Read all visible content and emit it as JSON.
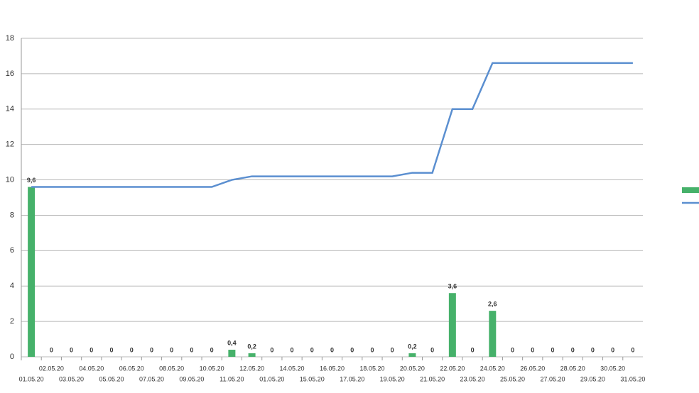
{
  "chart_data": {
    "type": "bar-line",
    "categories": [
      "01.05.20",
      "02.05.20",
      "03.05.20",
      "04.05.20",
      "05.05.20",
      "06.05.20",
      "07.05.20",
      "08.05.20",
      "09.05.20",
      "10.05.20",
      "11.05.20",
      "12.05.20",
      "01.05.20",
      "14.05.20",
      "15.05.20",
      "16.05.20",
      "17.05.20",
      "18.05.20",
      "19.05.20",
      "20.05.20",
      "21.05.20",
      "22.05.20",
      "23.05.20",
      "24.05.20",
      "25.05.20",
      "26.05.20",
      "27.05.20",
      "28.05.20",
      "29.05.20",
      "30.05.20",
      "31.05.20"
    ],
    "series": [
      {
        "type": "bar",
        "color": "#46b16a",
        "values": [
          9.6,
          0,
          0,
          0,
          0,
          0,
          0,
          0,
          0,
          0,
          0.4,
          0.2,
          0,
          0,
          0,
          0,
          0,
          0,
          0,
          0.2,
          0,
          3.6,
          0,
          2.6,
          0,
          0,
          0,
          0,
          0,
          0,
          0
        ],
        "value_labels": [
          "9,6",
          "0",
          "0",
          "0",
          "0",
          "0",
          "0",
          "0",
          "0",
          "0",
          "0,4",
          "0,2",
          "0",
          "0",
          "0",
          "0",
          "0",
          "0",
          "0",
          "0,2",
          "0",
          "3,6",
          "0",
          "2,6",
          "0",
          "0",
          "0",
          "0",
          "0",
          "0",
          "0"
        ]
      },
      {
        "type": "line",
        "color": "#5b8fd0",
        "values": [
          9.6,
          9.6,
          9.6,
          9.6,
          9.6,
          9.6,
          9.6,
          9.6,
          9.6,
          9.6,
          10.0,
          10.2,
          10.2,
          10.2,
          10.2,
          10.2,
          10.2,
          10.2,
          10.2,
          10.4,
          10.4,
          14.0,
          14.0,
          16.6,
          16.6,
          16.6,
          16.6,
          16.6,
          16.6,
          16.6,
          16.6
        ]
      }
    ],
    "ylim": [
      0,
      18
    ],
    "yticks": [
      0,
      2,
      4,
      6,
      8,
      10,
      12,
      14,
      16,
      18
    ],
    "grid": true
  }
}
